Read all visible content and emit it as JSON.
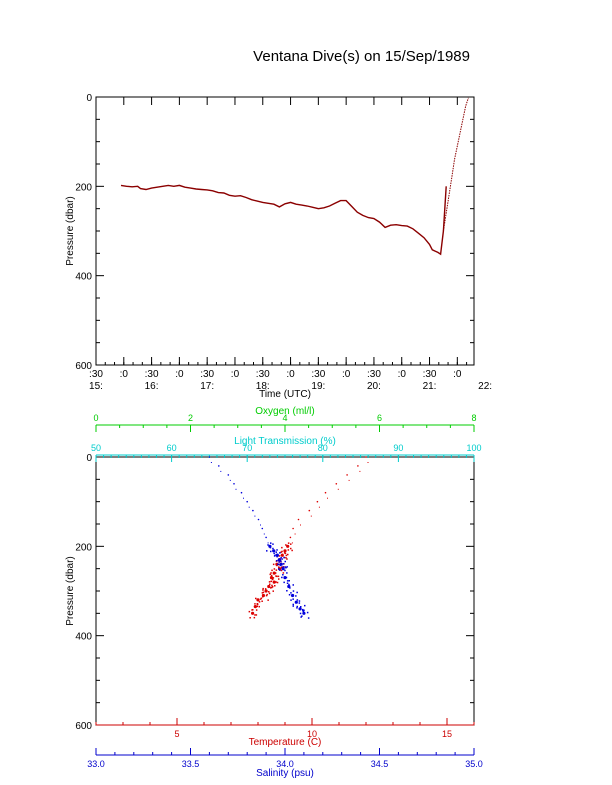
{
  "title": "Ventana Dive(s) on 15/Sep/1989",
  "chart_data": [
    {
      "type": "line",
      "name": "time-series",
      "xlabel": "Time (UTC)",
      "ylabel": "Pressure (dbar)",
      "x_unit": "hours UTC",
      "xlim": [
        15.5,
        22.3
      ],
      "ylim": [
        600,
        0
      ],
      "y_ticks": [
        "0",
        "200",
        "400",
        "600"
      ],
      "x_ticks_top": [
        ":30",
        ":0",
        ":30",
        ":0",
        ":30",
        ":0",
        ":30",
        ":0",
        ":30",
        ":0",
        ":30",
        ":0",
        ":30",
        ":0"
      ],
      "x_ticks_bottom": [
        "15:",
        "16:",
        "17:",
        "18:",
        "19:",
        "20:",
        "21:",
        "22:"
      ],
      "series": [
        {
          "color": "#8b0000",
          "x": [
            15.95,
            16.05,
            16.15,
            16.25,
            16.3,
            16.4,
            16.5,
            16.6,
            16.7,
            16.8,
            16.9,
            17.0,
            17.1,
            17.2,
            17.3,
            17.4,
            17.5,
            17.6,
            17.7,
            17.8,
            17.9,
            18.0,
            18.1,
            18.2,
            18.3,
            18.4,
            18.5,
            18.6,
            18.7,
            18.8,
            18.9,
            19.0,
            19.1,
            19.2,
            19.3,
            19.4,
            19.5,
            19.6,
            19.7,
            19.8,
            19.9,
            20.0,
            20.1,
            20.2,
            20.3,
            20.4,
            20.5,
            20.6,
            20.7,
            20.8,
            20.9,
            21.0,
            21.1,
            21.2,
            21.3,
            21.4,
            21.5,
            21.55,
            21.6,
            21.65,
            21.7,
            21.75,
            21.8
          ],
          "y": [
            198,
            200,
            201,
            200,
            205,
            207,
            204,
            202,
            200,
            198,
            200,
            198,
            202,
            204,
            206,
            207,
            208,
            210,
            214,
            215,
            220,
            222,
            221,
            225,
            230,
            233,
            236,
            238,
            240,
            246,
            239,
            236,
            240,
            242,
            244,
            247,
            250,
            248,
            244,
            238,
            232,
            232,
            245,
            258,
            265,
            270,
            272,
            280,
            292,
            287,
            286,
            288,
            289,
            295,
            305,
            315,
            330,
            342,
            345,
            348,
            352,
            300,
            200
          ]
        },
        {
          "color": "#8b0000",
          "x": [
            21.75,
            21.8,
            21.85,
            21.9,
            21.95,
            22.0,
            22.05,
            22.1,
            22.15,
            22.2
          ],
          "y": [
            300,
            260,
            220,
            180,
            140,
            110,
            80,
            50,
            20,
            2
          ]
        }
      ]
    },
    {
      "type": "scatter",
      "name": "profiles",
      "ylabel": "Pressure (dbar)",
      "ylim": [
        600,
        0
      ],
      "y_ticks": [
        "0",
        "200",
        "400",
        "600"
      ],
      "axes": [
        {
          "label": "Oxygen (ml/l)",
          "position": "top-outer",
          "color": "#00cc00",
          "range": [
            0,
            8
          ],
          "ticks": [
            "0",
            "2",
            "4",
            "6",
            "8"
          ]
        },
        {
          "label": "Light Transmission (%)",
          "position": "top-inner",
          "color": "#00cccc",
          "range": [
            50,
            100
          ],
          "ticks": [
            "50",
            "60",
            "70",
            "80",
            "90",
            "100"
          ]
        },
        {
          "label": "Temperature (C)",
          "position": "bottom-inner",
          "color": "#cc0000",
          "range": [
            2,
            16
          ],
          "ticks": [
            "5",
            "10",
            "15"
          ]
        },
        {
          "label": "Salinity (psu)",
          "position": "bottom-outer",
          "color": "#0000cc",
          "range": [
            33.0,
            35.0
          ],
          "ticks": [
            "33.0",
            "33.5",
            "34.0",
            "34.5",
            "35.0"
          ]
        }
      ],
      "series": [
        {
          "axis": "Temperature (C)",
          "color": "#dd0000",
          "x": [
            12.0,
            11.7,
            11.3,
            10.9,
            10.5,
            10.2,
            9.9,
            9.5,
            9.3,
            9.2,
            9.1,
            9.0,
            8.9,
            8.8,
            8.7,
            8.8,
            8.6,
            8.5,
            8.6,
            8.4,
            8.3,
            8.2,
            8.0,
            7.9,
            7.8
          ],
          "y": [
            0,
            20,
            40,
            60,
            80,
            100,
            120,
            140,
            160,
            180,
            200,
            210,
            220,
            230,
            240,
            250,
            260,
            270,
            280,
            290,
            300,
            310,
            320,
            335,
            350
          ]
        },
        {
          "axis": "Salinity (psu)",
          "color": "#0000dd",
          "x": [
            33.6,
            33.65,
            33.7,
            33.73,
            33.77,
            33.8,
            33.83,
            33.86,
            33.88,
            33.9,
            33.92,
            33.94,
            33.96,
            33.97,
            33.98,
            33.99,
            34.0,
            34.02,
            34.04,
            34.06,
            34.08,
            34.1
          ],
          "y": [
            0,
            20,
            40,
            60,
            80,
            100,
            120,
            140,
            160,
            180,
            200,
            210,
            220,
            230,
            240,
            250,
            270,
            290,
            310,
            325,
            340,
            350
          ]
        }
      ]
    }
  ]
}
